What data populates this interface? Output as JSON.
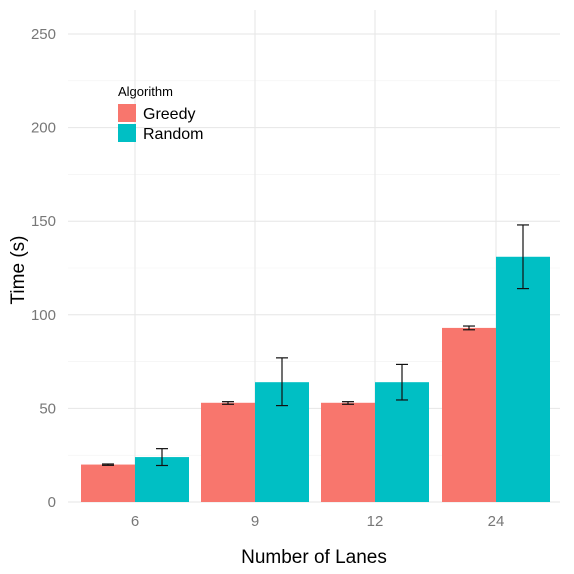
{
  "chart_data": {
    "type": "bar",
    "title": "",
    "xlabel": "Number of Lanes",
    "ylabel": "Time (s)",
    "categories": [
      "6",
      "9",
      "12",
      "24"
    ],
    "ylim": [
      0,
      260
    ],
    "yticks": [
      0,
      50,
      100,
      150,
      200,
      250
    ],
    "yticks_text": [
      "0",
      "50",
      "100",
      "150",
      "200",
      "250"
    ],
    "grid": true,
    "legend": {
      "title": "Algorithm",
      "placement": "top-left inside"
    },
    "series": [
      {
        "name": "Greedy",
        "color": "#F8766D",
        "values": [
          20,
          53,
          53,
          93
        ],
        "err_low": [
          19.6,
          52.2,
          52.2,
          92
        ],
        "err_high": [
          20.3,
          53.6,
          53.6,
          94
        ]
      },
      {
        "name": "Random",
        "color": "#00BFC4",
        "values": [
          24,
          64,
          64,
          131
        ],
        "err_low": [
          19.5,
          51.5,
          54.5,
          114
        ],
        "err_high": [
          28.5,
          77,
          73.5,
          148
        ]
      }
    ]
  }
}
